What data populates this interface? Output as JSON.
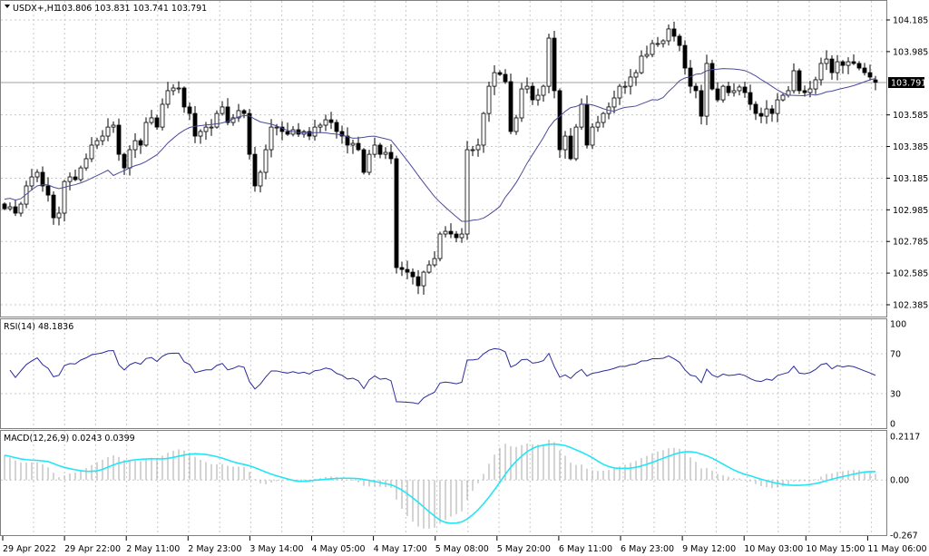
{
  "window": {
    "symbol_label": "USDX+,H1",
    "ohlc_readout": "103.806 103.831 103.741 103.791"
  },
  "current_price_label": "103.791",
  "rsi_panel": {
    "label": "RSI(14) 48.1836",
    "axis_labels": [
      "100",
      "70",
      "30",
      "0"
    ]
  },
  "macd_panel": {
    "label": "MACD(12,26,9) 0.0243 0.0399",
    "axis_labels": [
      "0.2117",
      "0.00",
      "-0.267"
    ]
  },
  "colors": {
    "bull_fill": "#ffffff",
    "bear_fill": "#000000",
    "ma_line": "#4a4a9a",
    "rsi_line": "#2b2b9a",
    "macd_hist": "#a8a8a8",
    "macd_signal": "#22e5f5",
    "grid": "#c8c8c8",
    "price_box": "#000000"
  },
  "chart_data": {
    "type": "candlestick",
    "symbol": "USDX+",
    "timeframe": "H1",
    "last_candle": {
      "open": 103.806,
      "high": 103.831,
      "low": 103.741,
      "close": 103.791
    },
    "y_ticks": [
      "104.185",
      "103.985",
      "103.585",
      "103.385",
      "103.185",
      "102.985",
      "102.785",
      "102.585",
      "102.385"
    ],
    "ylim": [
      102.385,
      104.185
    ],
    "x_tick_labels": [
      "29 Apr 2022",
      "29 Apr 22:00",
      "2 May 11:00",
      "2 May 23:00",
      "3 May 14:00",
      "4 May 05:00",
      "4 May 17:00",
      "5 May 08:00",
      "5 May 20:00",
      "6 May 11:00",
      "6 May 23:00",
      "9 May 12:00",
      "10 May 03:00",
      "10 May 15:00",
      "11 May 06:00"
    ],
    "grid": true,
    "indicators": [
      "Moving Average",
      "RSI(14)",
      "MACD(12,26,9)"
    ],
    "rsi_levels": [
      30,
      70
    ],
    "rsi_range": [
      0,
      100
    ],
    "macd_range": [
      -0.267,
      0.2117
    ],
    "closes": [
      102.992,
      103.004,
      102.964,
      103.021,
      103.136,
      103.193,
      103.222,
      103.136,
      103.078,
      102.935,
      102.964,
      103.164,
      103.193,
      103.176,
      103.25,
      103.308,
      103.394,
      103.422,
      103.451,
      103.508,
      103.52,
      103.336,
      103.25,
      103.365,
      103.422,
      103.394,
      103.537,
      103.566,
      103.508,
      103.652,
      103.738,
      103.755,
      103.755,
      103.635,
      103.594,
      103.451,
      103.48,
      103.508,
      103.508,
      103.594,
      103.635,
      103.537,
      103.566,
      103.612,
      103.594,
      103.336,
      103.136,
      103.222,
      103.365,
      103.508,
      103.508,
      103.48,
      103.463,
      103.491,
      103.463,
      103.48,
      103.451,
      103.508,
      103.52,
      103.554,
      103.537,
      103.48,
      103.451,
      103.394,
      103.405,
      103.365,
      103.222,
      103.336,
      103.394,
      103.336,
      103.348,
      103.308,
      102.62,
      102.608,
      102.591,
      102.562,
      102.505,
      102.591,
      102.637,
      102.677,
      102.832,
      102.849,
      102.832,
      102.809,
      102.832,
      103.365,
      103.365,
      103.394,
      103.594,
      103.766,
      103.852,
      103.841,
      103.795,
      103.48,
      103.566,
      103.749,
      103.766,
      103.68,
      103.709,
      103.766,
      104.07,
      103.738,
      103.365,
      103.451,
      103.308,
      103.508,
      103.652,
      103.394,
      103.508,
      103.537,
      103.594,
      103.635,
      103.692,
      103.766,
      103.766,
      103.824,
      103.852,
      103.956,
      103.967,
      104.036,
      104.036,
      104.053,
      104.128,
      104.082,
      104.024,
      103.881,
      103.766,
      103.738,
      103.577,
      103.91,
      103.749,
      103.68,
      103.766,
      103.726,
      103.738,
      103.761,
      103.726,
      103.652,
      103.594,
      103.577,
      103.623,
      103.594,
      103.68,
      103.709,
      103.738,
      103.864,
      103.738,
      103.726,
      103.749,
      103.807,
      103.91,
      103.938,
      103.852,
      103.921,
      103.898,
      103.921,
      103.91,
      103.881,
      103.852,
      103.824,
      103.791
    ]
  }
}
